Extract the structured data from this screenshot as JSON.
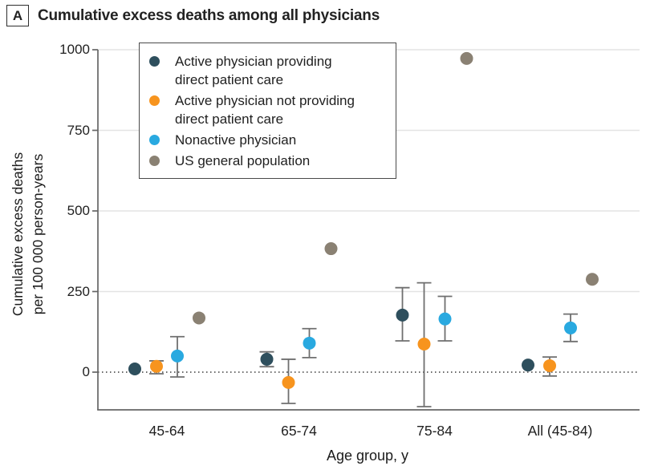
{
  "panel": {
    "label": "A",
    "title": "Cumulative excess deaths among all physicians"
  },
  "chart_data": {
    "type": "scatter",
    "title": "Cumulative excess deaths among all physicians",
    "xlabel": "Age group, y",
    "ylabel": "Cumulative excess deaths\nper 100 000 person-years",
    "categories": [
      "45-64",
      "65-74",
      "75-84",
      "All (45-84)"
    ],
    "yticks": [
      "0",
      "250",
      "500",
      "750",
      "1000"
    ],
    "ytick_values": [
      0,
      250,
      500,
      750,
      1000
    ],
    "ylim": [
      -120,
      1060
    ],
    "grid": "horizontal gridlines at y ticks",
    "zero_reference_line": "dotted horizontal line at 0",
    "legend_position": "top-left inside plot",
    "units": "per 100 000 person-years",
    "series": [
      {
        "name": "Active physician providing direct patient care",
        "label": "Active physician providing\ndirect patient care",
        "color": "#2E4F5D",
        "values": [
          10,
          40,
          177,
          22
        ],
        "ci_low": [
          null,
          17,
          97,
          null
        ],
        "ci_high": [
          null,
          63,
          262,
          null
        ]
      },
      {
        "name": "Active physician not providing direct patient care",
        "label": "Active physician not providing\ndirect patient care",
        "color": "#F7941E",
        "values": [
          18,
          -32,
          87,
          20
        ],
        "ci_low": [
          -5,
          -97,
          -107,
          -12
        ],
        "ci_high": [
          35,
          40,
          277,
          47
        ]
      },
      {
        "name": "Nonactive physician",
        "label": "Nonactive physician",
        "color": "#29A9E0",
        "values": [
          50,
          90,
          165,
          137
        ],
        "ci_low": [
          -15,
          45,
          97,
          95
        ],
        "ci_high": [
          110,
          135,
          235,
          180
        ]
      },
      {
        "name": "US general population",
        "label": "US general population",
        "color": "#8A8173",
        "values": [
          168,
          383,
          973,
          288
        ],
        "ci_low": [
          null,
          null,
          null,
          null
        ],
        "ci_high": [
          null,
          null,
          null,
          null
        ]
      }
    ],
    "style": {
      "axis_color": "#666666",
      "gridline_color": "#E3E3E3",
      "error_bar_color": "#6F6F6F",
      "zero_line_color": "#3A3A3A"
    }
  }
}
